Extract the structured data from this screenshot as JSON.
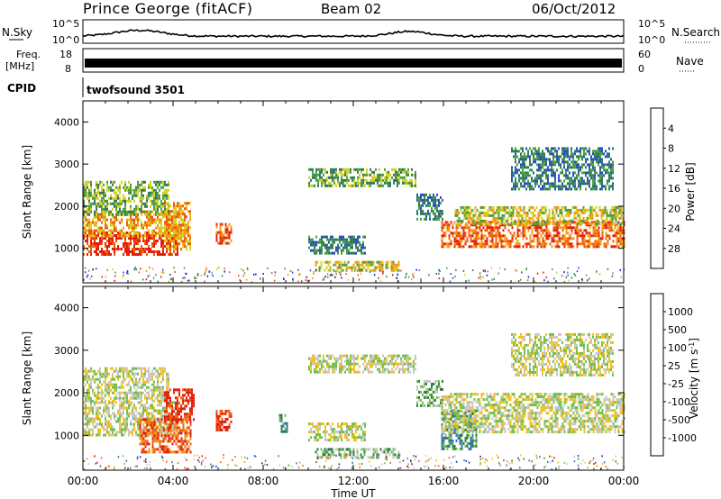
{
  "header": {
    "station": "Prince George (fitACF)",
    "beam": "Beam 02",
    "date": "06/Oct/2012"
  },
  "top_panels": {
    "nsky": {
      "label": "N.Sky",
      "ticks": [
        "10^5",
        "10^0"
      ]
    },
    "nsearch": {
      "label": "N.Search",
      "ticks": [
        "10^5",
        "10^0"
      ]
    },
    "freq": {
      "label_line1": "Freq.",
      "label_line2": "[MHz]",
      "ticks": [
        "18",
        "8"
      ]
    },
    "nave": {
      "label": "Nave",
      "ticks": [
        "60",
        "0"
      ]
    },
    "cpid": {
      "label": "CPID",
      "program": "twofsound 3501"
    }
  },
  "chart_data": [
    {
      "type": "heatmap",
      "panel": "power",
      "ylabel": "Slant Range [km]",
      "yticks": [
        1000,
        2000,
        3000,
        4000
      ],
      "ylim": [
        180,
        4500
      ],
      "xlim_hours": [
        0,
        24
      ],
      "colorbar": {
        "label": "Power [dB]",
        "ticks": [
          "4",
          "8",
          "12",
          "16",
          "20",
          "24",
          "28"
        ],
        "colors": [
          "#0a1cf0",
          "#2a4fc0",
          "#2f7a5a",
          "#4aa040",
          "#d6d020",
          "#f39a10",
          "#f05a0a",
          "#e21f0a"
        ]
      },
      "echo_regions": [
        {
          "t": [
            0.0,
            4.2
          ],
          "range": [
            850,
            1400
          ],
          "level": 7
        },
        {
          "t": [
            0.0,
            4.5
          ],
          "range": [
            1300,
            1900
          ],
          "level": 5
        },
        {
          "t": [
            0.0,
            3.8
          ],
          "range": [
            1800,
            2600
          ],
          "level": 3
        },
        {
          "t": [
            3.6,
            4.8
          ],
          "range": [
            1000,
            2100
          ],
          "level": 5
        },
        {
          "t": [
            5.9,
            6.6
          ],
          "range": [
            1150,
            1600
          ],
          "level": 6
        },
        {
          "t": [
            10.0,
            12.5
          ],
          "range": [
            900,
            1300
          ],
          "level": 2
        },
        {
          "t": [
            10.3,
            14.0
          ],
          "range": [
            480,
            700
          ],
          "level": 4
        },
        {
          "t": [
            10.0,
            14.8
          ],
          "range": [
            2500,
            2900
          ],
          "level": 3
        },
        {
          "t": [
            14.8,
            16.0
          ],
          "range": [
            1700,
            2300
          ],
          "level": 2
        },
        {
          "t": [
            15.9,
            24.0
          ],
          "range": [
            1050,
            1650
          ],
          "level": 6
        },
        {
          "t": [
            16.5,
            24.0
          ],
          "range": [
            1600,
            2000
          ],
          "level": 4
        },
        {
          "t": [
            19.0,
            23.5
          ],
          "range": [
            2400,
            3400
          ],
          "level": 2
        }
      ]
    },
    {
      "type": "heatmap",
      "panel": "velocity",
      "ylabel": "Slant Range [km]",
      "yticks": [
        1000,
        2000,
        3000,
        4000
      ],
      "ylim": [
        180,
        4500
      ],
      "xlim_hours": [
        0,
        24
      ],
      "xlabel": "Time UT",
      "xticks": [
        "00:00",
        "04:00",
        "08:00",
        "12:00",
        "16:00",
        "20:00",
        "00:00"
      ],
      "colorbar": {
        "label": "Velocity [m s",
        "label_sup": "-1",
        "label_close": "]",
        "ticks": [
          "1000",
          "500",
          "100",
          "25",
          "-25",
          "-100",
          "-500",
          "-1000"
        ],
        "colors": [
          "#1030c0",
          "#3a6fd0",
          "#2f7a45",
          "#72c050",
          "#c8c8c8",
          "#f2c020",
          "#f5901a",
          "#f06010",
          "#e21f0a"
        ]
      },
      "echo_regions": [
        {
          "t": [
            0.0,
            4.2
          ],
          "range": [
            1000,
            1800
          ],
          "level": 4
        },
        {
          "t": [
            0.0,
            3.8
          ],
          "range": [
            1800,
            2600
          ],
          "level": 4
        },
        {
          "t": [
            2.5,
            4.8
          ],
          "range": [
            600,
            1400
          ],
          "level": 7
        },
        {
          "t": [
            3.6,
            4.9
          ],
          "range": [
            1400,
            2100
          ],
          "level": 8
        },
        {
          "t": [
            5.9,
            6.6
          ],
          "range": [
            1150,
            1600
          ],
          "level": 8
        },
        {
          "t": [
            8.7,
            9.1
          ],
          "range": [
            1100,
            1500
          ],
          "level": 2
        },
        {
          "t": [
            10.0,
            12.5
          ],
          "range": [
            900,
            1300
          ],
          "level": 4
        },
        {
          "t": [
            10.3,
            14.0
          ],
          "range": [
            480,
            700
          ],
          "level": 3
        },
        {
          "t": [
            10.0,
            14.8
          ],
          "range": [
            2500,
            2900
          ],
          "level": 4
        },
        {
          "t": [
            14.8,
            16.0
          ],
          "range": [
            1700,
            2300
          ],
          "level": 3
        },
        {
          "t": [
            15.9,
            17.5
          ],
          "range": [
            700,
            1600
          ],
          "level": 2
        },
        {
          "t": [
            15.9,
            24.0
          ],
          "range": [
            1050,
            2000
          ],
          "level": 4
        },
        {
          "t": [
            19.0,
            23.5
          ],
          "range": [
            2400,
            3400
          ],
          "level": 4
        }
      ]
    }
  ]
}
